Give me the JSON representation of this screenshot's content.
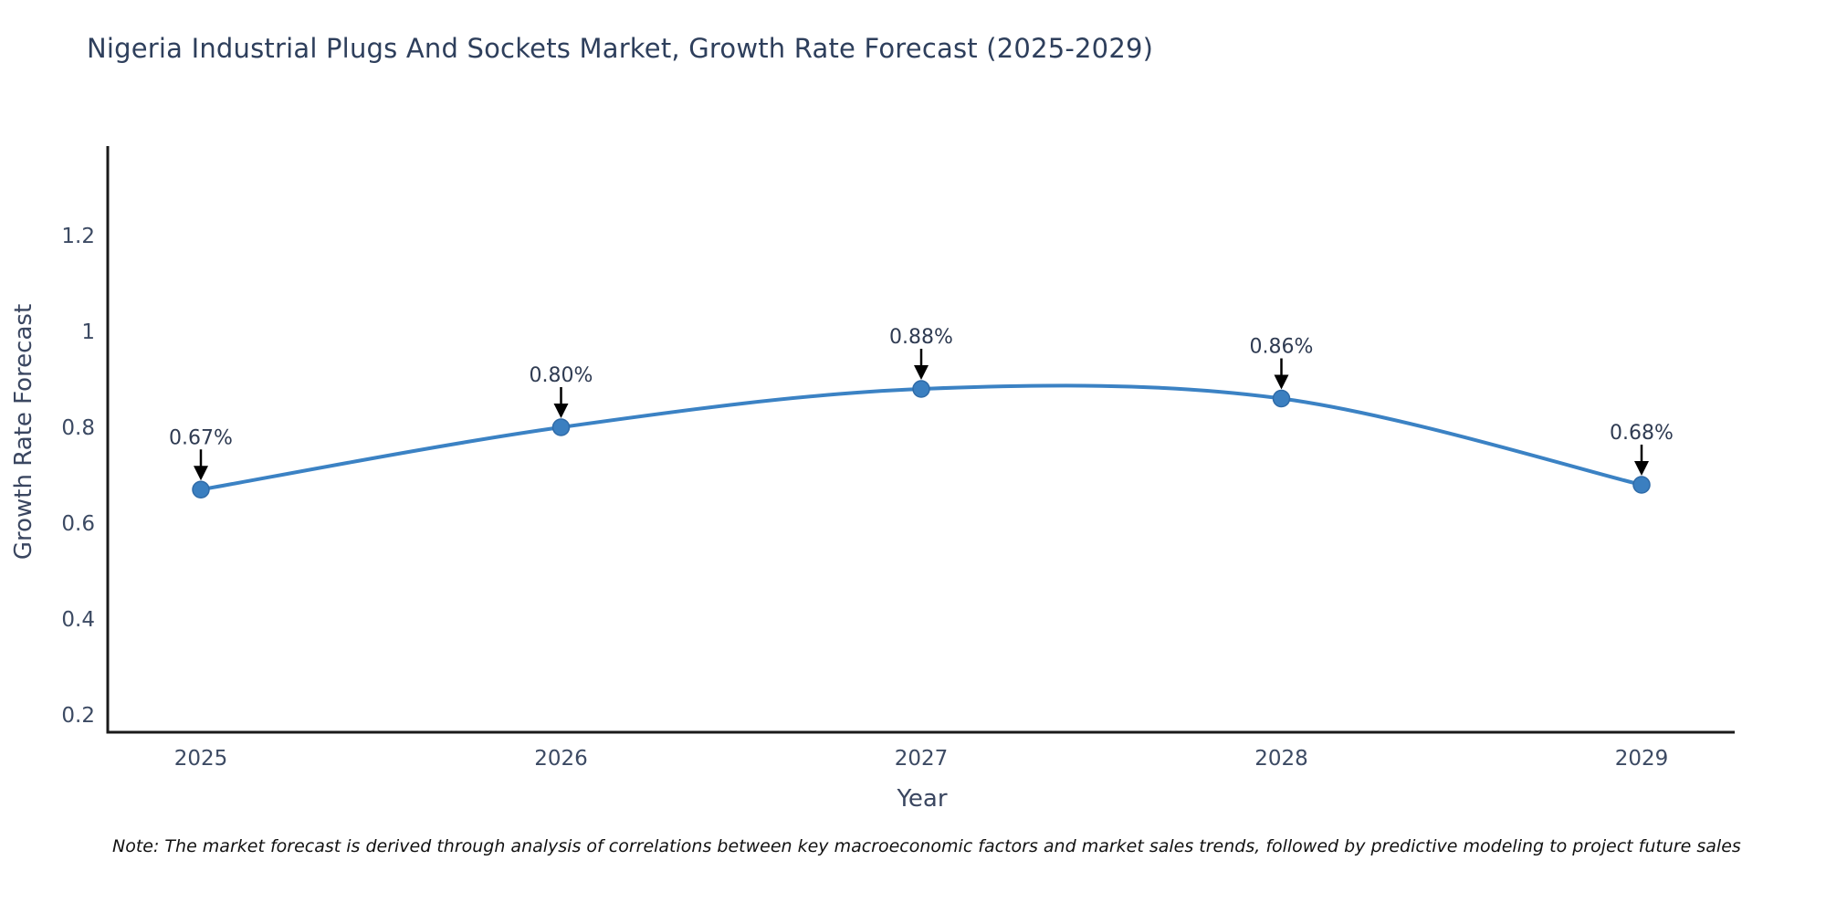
{
  "chart_data": {
    "type": "line",
    "title": "Nigeria Industrial Plugs And Sockets Market, Growth Rate Forecast (2025-2029)",
    "xlabel": "Year",
    "ylabel": "Growth Rate Forecast",
    "categories": [
      "2025",
      "2026",
      "2027",
      "2028",
      "2029"
    ],
    "series": [
      {
        "name": "Growth Rate Forecast",
        "values": [
          0.67,
          0.8,
          0.88,
          0.86,
          0.68
        ],
        "point_labels": [
          "0.67%",
          "0.80%",
          "0.88%",
          "0.86%",
          "0.68%"
        ]
      }
    ],
    "ytick_labels": [
      "0.2",
      "0.4",
      "0.6",
      "0.8",
      "1",
      "1.2"
    ],
    "ytick_values": [
      0.2,
      0.4,
      0.6,
      0.8,
      1.0,
      1.2
    ],
    "ylim": [
      0.16,
      1.39
    ],
    "line_shape": "spline",
    "grid": false,
    "legend_position": "none",
    "annotations_style": "value label with black down arrow to each marker",
    "colors": {
      "line": "#3b82c4",
      "marker_fill": "#3b7fc0",
      "marker_edge": "#2f6ba8",
      "arrow": "#000000",
      "axis": "#1a1a1a",
      "title_text": "#2e3f5c",
      "tick_text": "#3c4a63",
      "axis_label_text": "#3a4660",
      "annotation_text": "#2f3b52",
      "note_text": "#111111"
    },
    "note": "Note: The market forecast is derived through analysis of correlations between key macroeconomic factors and market sales trends, followed by predictive modeling to project future sales"
  }
}
